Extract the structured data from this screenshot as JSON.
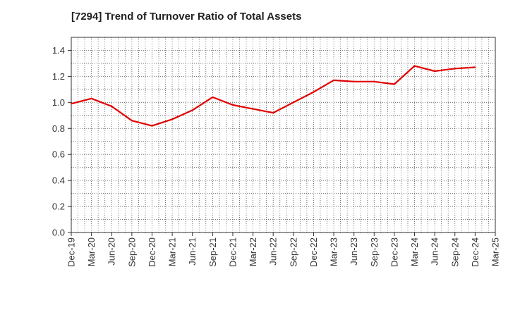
{
  "chart_data": {
    "type": "line",
    "title": "[7294]  Trend of Turnover Ratio of Total Assets",
    "xlabel": "",
    "ylabel": "",
    "ylim": [
      0,
      1.5
    ],
    "y_ticks": [
      "0.0",
      "0.2",
      "0.4",
      "0.6",
      "0.8",
      "1.0",
      "1.2",
      "1.4"
    ],
    "categories": [
      "Dec-19",
      "Mar-20",
      "Jun-20",
      "Sep-20",
      "Dec-20",
      "Mar-21",
      "Jun-21",
      "Sep-21",
      "Dec-21",
      "Mar-22",
      "Jun-22",
      "Sep-22",
      "Dec-22",
      "Mar-23",
      "Jun-23",
      "Sep-23",
      "Dec-23",
      "Mar-24",
      "Jun-24",
      "Sep-24",
      "Dec-24",
      "Mar-25"
    ],
    "series": [
      {
        "color": "#e00000",
        "values": [
          0.99,
          1.03,
          0.97,
          0.86,
          0.82,
          0.87,
          0.94,
          1.04,
          0.98,
          0.95,
          0.92,
          1.0,
          1.08,
          1.17,
          1.16,
          1.16,
          1.14,
          1.28,
          1.24,
          1.26,
          1.27,
          null
        ]
      }
    ],
    "grid": true,
    "legend": "none"
  }
}
